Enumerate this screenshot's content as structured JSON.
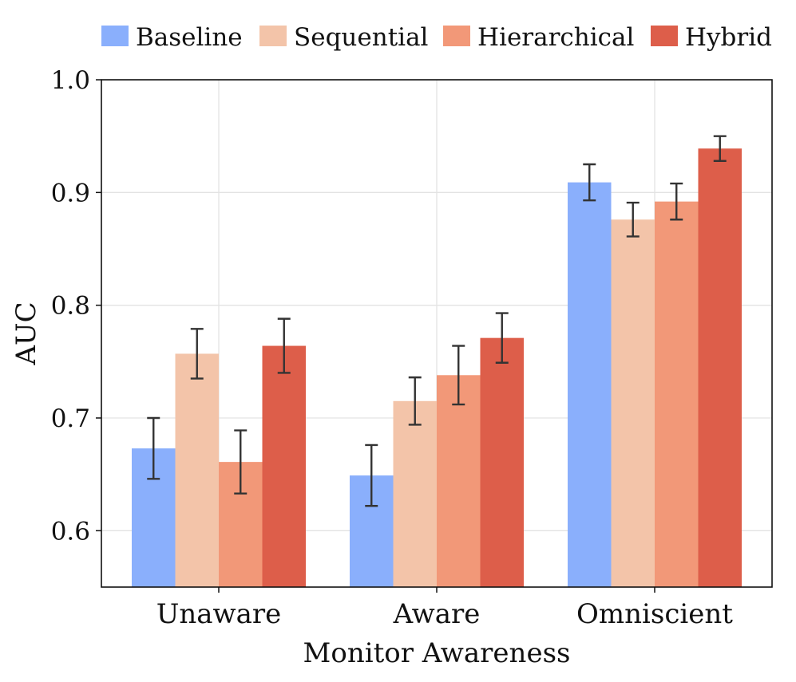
{
  "chart_data": {
    "type": "bar",
    "title": "",
    "xlabel": "Monitor Awareness",
    "ylabel": "AUC",
    "categories": [
      "Unaware",
      "Aware",
      "Omniscient"
    ],
    "ylim": [
      0.55,
      1.0
    ],
    "yticks": [
      0.6,
      0.7,
      0.8,
      0.9,
      1.0
    ],
    "ytick_labels": [
      "0.6",
      "0.7",
      "0.8",
      "0.9",
      "1.0"
    ],
    "grid": true,
    "legend_position": "top",
    "error_bars": true,
    "series": [
      {
        "name": "Baseline",
        "color": "#8aaffc",
        "values": [
          0.673,
          0.649,
          0.909
        ],
        "err_low": [
          0.646,
          0.622,
          0.893
        ],
        "err_high": [
          0.7,
          0.676,
          0.925
        ]
      },
      {
        "name": "Sequential",
        "color": "#f3c4a9",
        "values": [
          0.757,
          0.715,
          0.876
        ],
        "err_low": [
          0.735,
          0.694,
          0.861
        ],
        "err_high": [
          0.779,
          0.736,
          0.891
        ]
      },
      {
        "name": "Hierarchical",
        "color": "#f29878",
        "values": [
          0.661,
          0.738,
          0.892
        ],
        "err_low": [
          0.633,
          0.712,
          0.876
        ],
        "err_high": [
          0.689,
          0.764,
          0.908
        ]
      },
      {
        "name": "Hybrid",
        "color": "#dd5e4a",
        "values": [
          0.764,
          0.771,
          0.939
        ],
        "err_low": [
          0.74,
          0.749,
          0.928
        ],
        "err_high": [
          0.788,
          0.793,
          0.95
        ]
      }
    ]
  }
}
